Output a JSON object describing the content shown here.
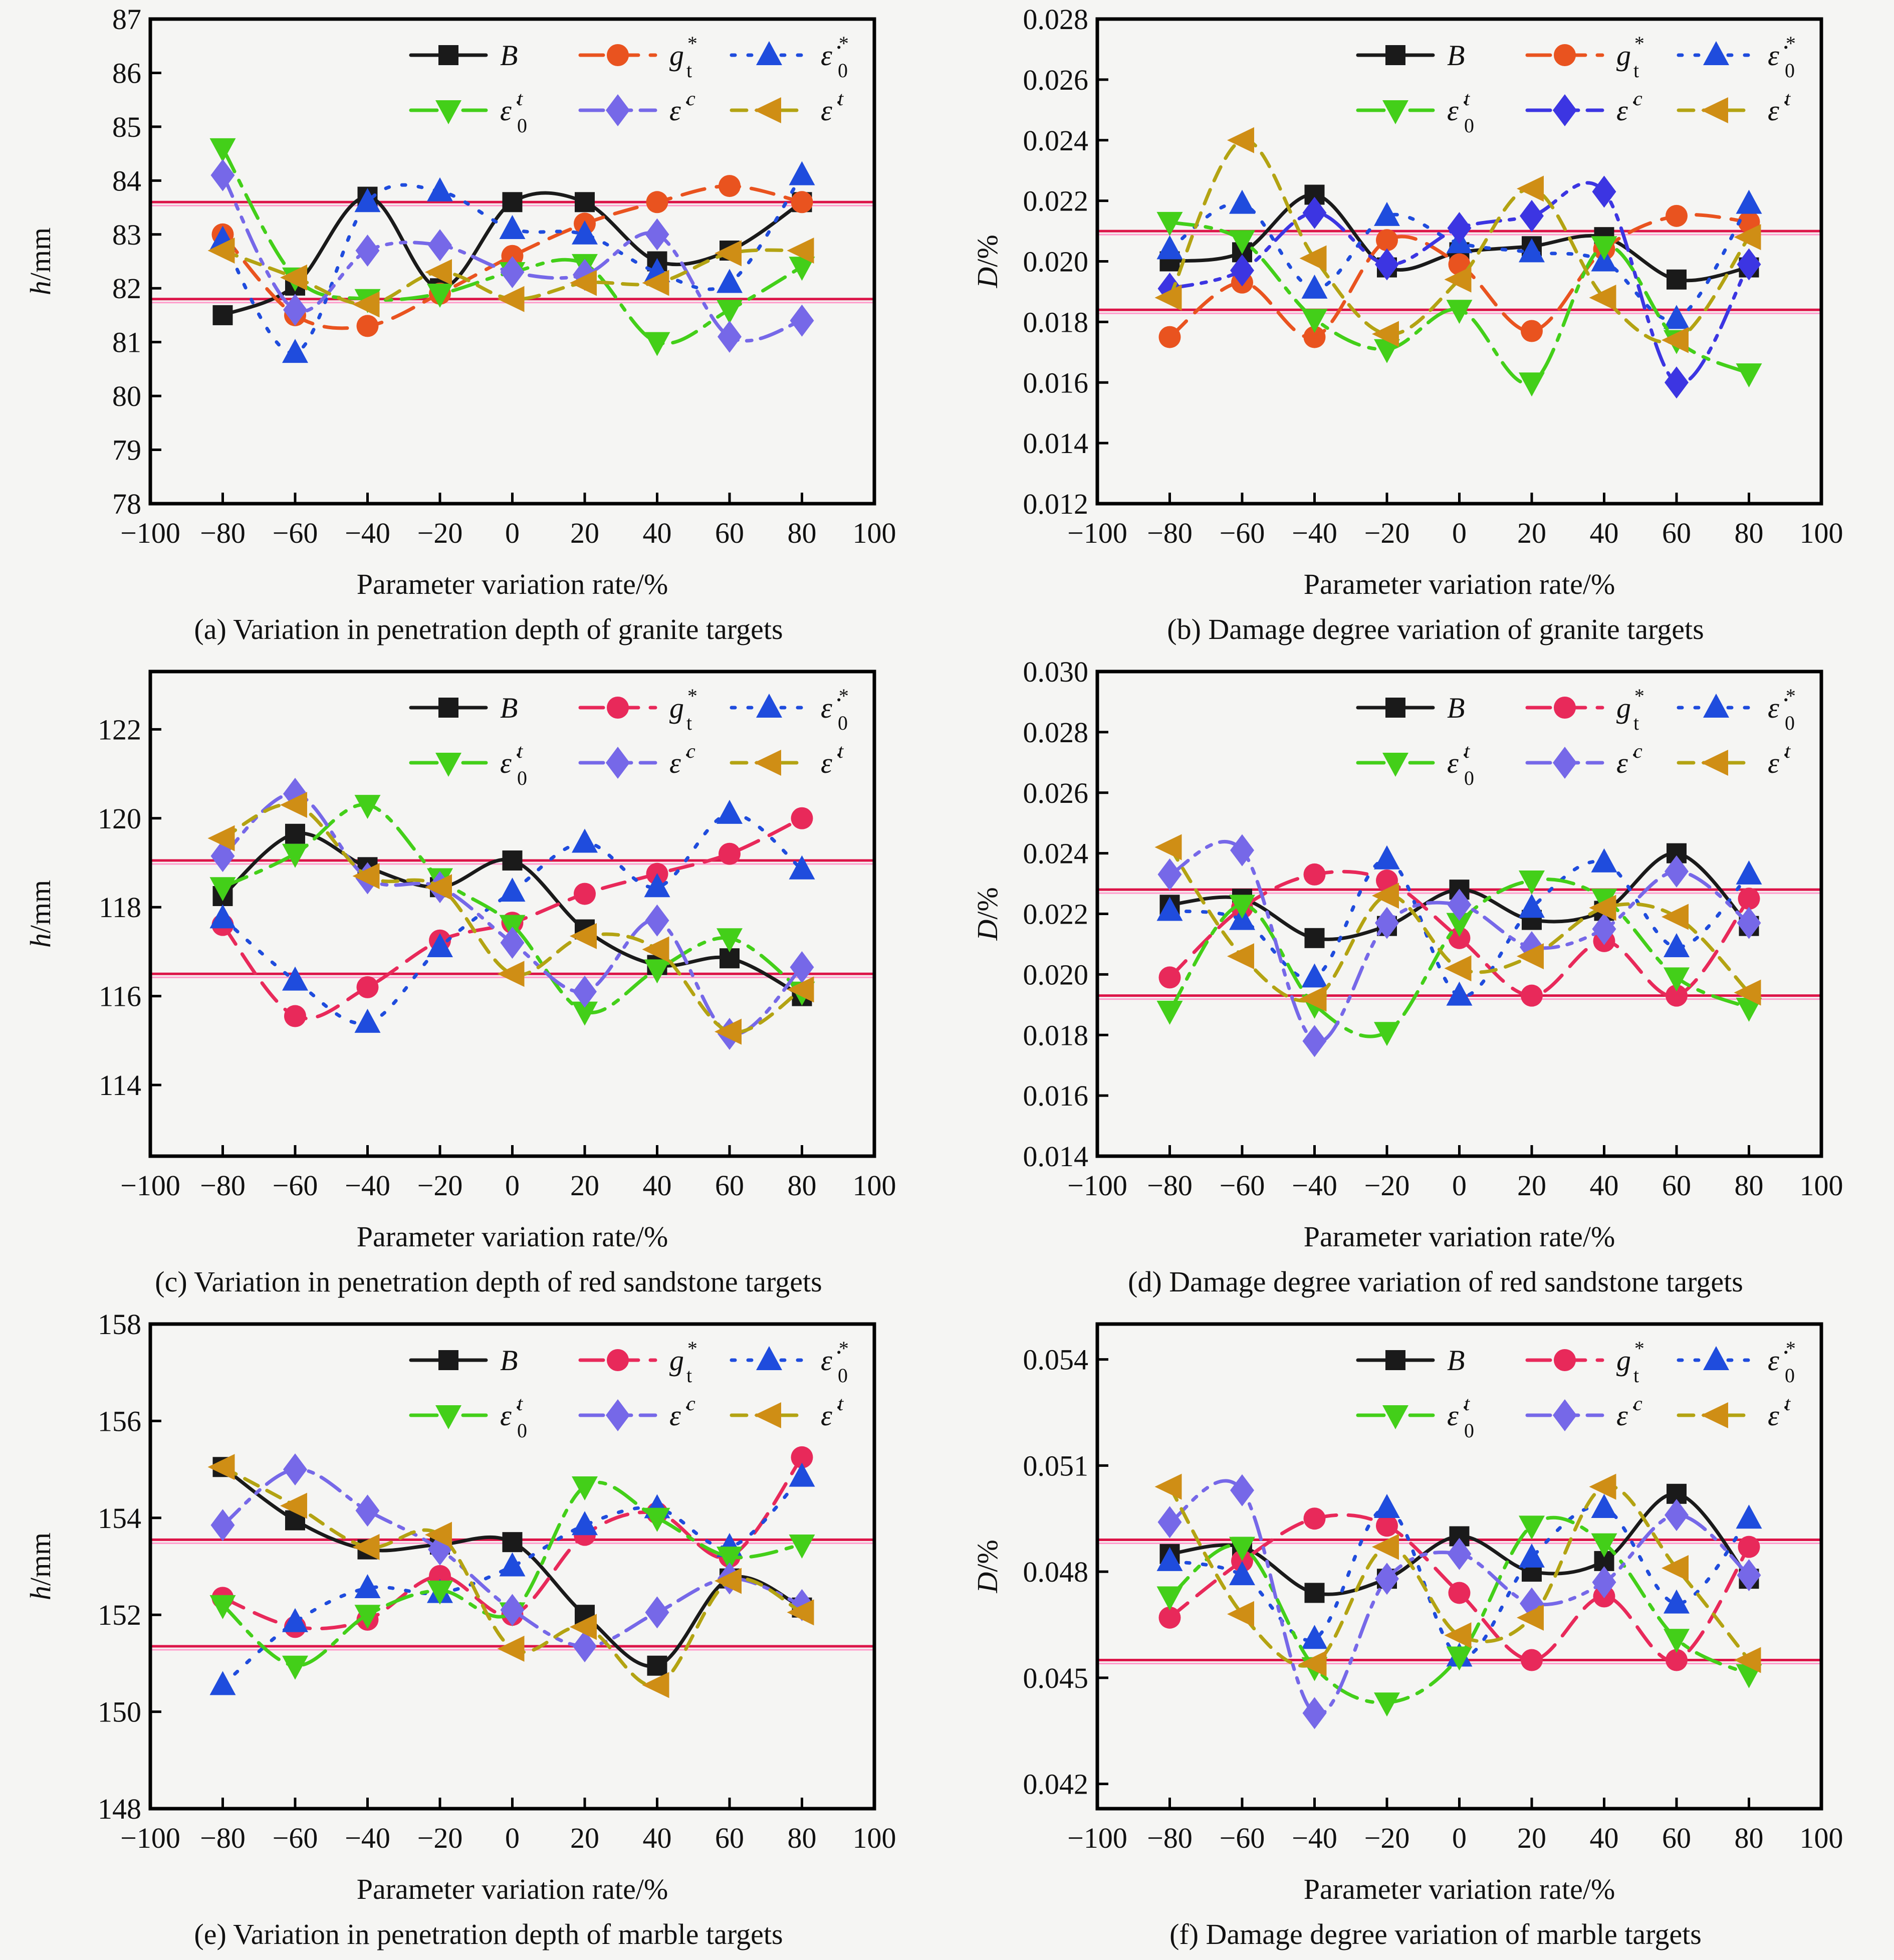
{
  "page": {
    "background": "#f5f5f3"
  },
  "common": {
    "xlabel": "Parameter variation rate/%",
    "xlim": [
      -100,
      100
    ],
    "x_ticks": [
      -100,
      -80,
      -60,
      -40,
      -20,
      0,
      20,
      40,
      60,
      80,
      100
    ],
    "x_values": [
      -80,
      -60,
      -40,
      -20,
      0,
      20,
      40,
      60,
      80
    ],
    "legend_rows": [
      [
        "B",
        "g_t_star",
        "eps0_star"
      ],
      [
        "eps0_t",
        "eps_c",
        "eps_t"
      ]
    ],
    "ref_line_colors": {
      "main": "#dc1448",
      "light": "#ff9ccb"
    },
    "series_defs": [
      {
        "key": "B",
        "label": {
          "main": "B",
          "sub": "",
          "sup": ""
        },
        "marker": "square",
        "dash": "solid",
        "color": "#1a1a1a"
      },
      {
        "key": "g_t_star",
        "label": {
          "main": "g",
          "sub": "t",
          "sup": "*"
        },
        "marker": "circle",
        "dash": "dashed",
        "color": "#e9531f"
      },
      {
        "key": "eps0_star",
        "label": {
          "main": "ε̇",
          "sub": "0",
          "sup": "*"
        },
        "marker": "triangle-up",
        "dash": "dotted",
        "color": "#1f4cdd"
      },
      {
        "key": "eps0_t",
        "label": {
          "main": "ε̇",
          "sub": "0",
          "sup": "t"
        },
        "marker": "triangle-down",
        "dash": "dashdot",
        "color": "#43cf19"
      },
      {
        "key": "eps_c",
        "label": {
          "main": "ε̇",
          "sub": "",
          "sup": "c"
        },
        "marker": "diamond",
        "dash": "dashdotdot",
        "color": "#7668e8"
      },
      {
        "key": "eps_t",
        "label": {
          "main": "ε̇",
          "sub": "",
          "sup": "t"
        },
        "marker": "triangle-left",
        "dash": "dash",
        "color": "#cf8e15",
        "line_color": "#b3a312"
      }
    ]
  },
  "chart_data": [
    {
      "id": "a",
      "type": "line",
      "caption": "(a) Variation in penetration depth of granite targets",
      "ylabel_italic": "h",
      "ylabel_unit": "/mm",
      "ylim": [
        78,
        87
      ],
      "yticks": [
        78,
        79,
        80,
        81,
        82,
        83,
        84,
        85,
        86,
        87
      ],
      "ytick_decimals": 0,
      "ref_lines": [
        83.6,
        81.8
      ],
      "series": {
        "B": [
          81.5,
          82.05,
          83.7,
          82.0,
          83.6,
          83.6,
          82.5,
          82.7,
          83.6
        ],
        "g_t_star": [
          83.0,
          81.5,
          81.3,
          81.9,
          82.6,
          83.2,
          83.6,
          83.9,
          83.6
        ],
        "eps0_star": [
          82.9,
          80.8,
          83.6,
          83.8,
          83.1,
          83.0,
          82.3,
          82.1,
          84.1
        ],
        "eps0_t": [
          84.6,
          82.2,
          81.8,
          81.9,
          82.3,
          82.45,
          81.0,
          81.6,
          82.4
        ],
        "eps_c": [
          84.1,
          81.6,
          82.7,
          82.8,
          82.3,
          82.25,
          83.0,
          81.1,
          81.4
        ],
        "eps_t": [
          82.7,
          82.2,
          81.7,
          82.3,
          81.8,
          82.1,
          82.1,
          82.65,
          82.7
        ]
      },
      "color_overrides": {}
    },
    {
      "id": "b",
      "type": "line",
      "caption": "(b) Damage degree variation of granite targets",
      "ylabel_italic": "D",
      "ylabel_unit": "/%",
      "ylim": [
        0.012,
        0.028
      ],
      "yticks": [
        0.012,
        0.014,
        0.016,
        0.018,
        0.02,
        0.022,
        0.024,
        0.026,
        0.028
      ],
      "ytick_decimals": 3,
      "ref_lines": [
        0.021,
        0.0184
      ],
      "series": {
        "B": [
          0.02,
          0.0203,
          0.0222,
          0.0198,
          0.0203,
          0.0205,
          0.0208,
          0.0194,
          0.0198
        ],
        "g_t_star": [
          0.0175,
          0.0193,
          0.0175,
          0.0207,
          0.0199,
          0.0177,
          0.0204,
          0.0215,
          0.0213
        ],
        "eps0_star": [
          0.0204,
          0.0219,
          0.0191,
          0.0215,
          0.0206,
          0.0203,
          0.02,
          0.0181,
          0.0219
        ],
        "eps0_t": [
          0.0213,
          0.0207,
          0.0181,
          0.0171,
          0.0184,
          0.016,
          0.0205,
          0.0174,
          0.0163
        ],
        "eps_c": [
          0.0191,
          0.0197,
          0.0216,
          0.0199,
          0.0211,
          0.0215,
          0.0223,
          0.016,
          0.0199
        ],
        "eps_t": [
          0.0188,
          0.024,
          0.0201,
          0.0176,
          0.0194,
          0.0224,
          0.0188,
          0.0174,
          0.0208
        ]
      },
      "color_overrides": {
        "eps_c": "#3c35e2"
      }
    },
    {
      "id": "c",
      "type": "line",
      "caption": "(c) Variation in penetration depth of red sandstone targets",
      "ylabel_italic": "h",
      "ylabel_unit": "/mm",
      "ylim": [
        112.4,
        123.3
      ],
      "yticks": [
        114,
        116,
        118,
        120,
        122
      ],
      "ytick_decimals": 0,
      "ref_lines": [
        119.05,
        116.5
      ],
      "series": {
        "B": [
          118.25,
          119.65,
          118.9,
          118.45,
          119.05,
          117.5,
          116.7,
          116.85,
          116.0
        ],
        "g_t_star": [
          117.6,
          115.55,
          116.2,
          117.25,
          117.65,
          118.3,
          118.75,
          119.2,
          120.0
        ],
        "eps0_star": [
          117.75,
          116.35,
          115.4,
          117.1,
          118.35,
          119.45,
          118.45,
          120.1,
          118.85
        ],
        "eps0_t": [
          118.45,
          119.2,
          120.3,
          118.65,
          117.6,
          115.65,
          116.6,
          117.3,
          116.1
        ],
        "eps_c": [
          119.15,
          120.55,
          118.65,
          118.45,
          117.2,
          116.1,
          117.7,
          115.15,
          116.65
        ],
        "eps_t": [
          119.55,
          120.3,
          118.7,
          118.45,
          116.5,
          117.35,
          117.05,
          115.2,
          116.15
        ]
      },
      "color_overrides": {
        "g_t_star": "#e8295a"
      }
    },
    {
      "id": "d",
      "type": "line",
      "caption": "(d) Damage degree variation of red sandstone targets",
      "ylabel_italic": "D",
      "ylabel_unit": "/%",
      "ylim": [
        0.014,
        0.03
      ],
      "yticks": [
        0.014,
        0.016,
        0.018,
        0.02,
        0.022,
        0.024,
        0.026,
        0.028,
        0.03
      ],
      "ytick_decimals": 3,
      "ref_lines": [
        0.0228,
        0.0193
      ],
      "series": {
        "B": [
          0.0223,
          0.0225,
          0.0212,
          0.0216,
          0.0228,
          0.0218,
          0.0221,
          0.024,
          0.0216
        ],
        "g_t_star": [
          0.0199,
          0.0222,
          0.0233,
          0.0231,
          0.0212,
          0.0193,
          0.0211,
          0.0193,
          0.0225
        ],
        "eps0_star": [
          0.0221,
          0.0218,
          0.0199,
          0.0238,
          0.0193,
          0.0222,
          0.0237,
          0.0209,
          0.0233
        ],
        "eps0_t": [
          0.0188,
          0.0223,
          0.019,
          0.0181,
          0.0217,
          0.0231,
          0.0225,
          0.0199,
          0.0189
        ],
        "eps_c": [
          0.0233,
          0.0241,
          0.0178,
          0.0217,
          0.0223,
          0.0209,
          0.0215,
          0.0234,
          0.0217
        ],
        "eps_t": [
          0.0242,
          0.0206,
          0.0192,
          0.0226,
          0.0202,
          0.0206,
          0.0222,
          0.0219,
          0.0194
        ]
      },
      "color_overrides": {
        "g_t_star": "#e8295a"
      }
    },
    {
      "id": "e",
      "type": "line",
      "caption": "(e) Variation in penetration depth of marble targets",
      "ylabel_italic": "h",
      "ylabel_unit": "/mm",
      "ylim": [
        148,
        158
      ],
      "yticks": [
        148,
        150,
        152,
        154,
        156,
        158
      ],
      "ytick_decimals": 0,
      "ref_lines": [
        153.55,
        151.35
      ],
      "series": {
        "B": [
          155.05,
          153.95,
          153.35,
          153.45,
          153.5,
          152.0,
          150.95,
          152.75,
          152.15
        ],
        "g_t_star": [
          152.35,
          151.75,
          151.9,
          152.8,
          152.0,
          153.65,
          154.1,
          153.2,
          155.25
        ],
        "eps0_star": [
          150.55,
          151.85,
          152.55,
          152.45,
          153.0,
          153.85,
          154.2,
          153.4,
          154.85
        ],
        "eps0_t": [
          152.2,
          150.95,
          152.0,
          152.5,
          152.05,
          154.65,
          154.0,
          153.2,
          153.45
        ],
        "eps_c": [
          153.85,
          155.0,
          154.15,
          153.35,
          152.1,
          151.35,
          152.05,
          152.75,
          152.2
        ],
        "eps_t": [
          155.05,
          154.25,
          153.4,
          153.65,
          151.3,
          151.75,
          150.55,
          152.7,
          152.05
        ]
      },
      "color_overrides": {
        "g_t_star": "#e8295a"
      }
    },
    {
      "id": "f",
      "type": "line",
      "caption": "(f) Damage degree variation of marble targets",
      "ylabel_italic": "D",
      "ylabel_unit": "/%",
      "ylim": [
        0.0413,
        0.055
      ],
      "yticks": [
        0.042,
        0.045,
        0.048,
        0.051,
        0.054
      ],
      "ytick_decimals": 3,
      "ref_lines": [
        0.0489,
        0.0455
      ],
      "series": {
        "B": [
          0.0485,
          0.0487,
          0.0474,
          0.0478,
          0.049,
          0.048,
          0.0483,
          0.0502,
          0.0478
        ],
        "g_t_star": [
          0.0467,
          0.0483,
          0.0495,
          0.0493,
          0.0474,
          0.0455,
          0.0473,
          0.0455,
          0.0487
        ],
        "eps0_star": [
          0.0483,
          0.0479,
          0.0461,
          0.0498,
          0.0456,
          0.0484,
          0.0498,
          0.0471,
          0.0495
        ],
        "eps0_t": [
          0.0473,
          0.0487,
          0.0453,
          0.0443,
          0.0456,
          0.0493,
          0.0488,
          0.0461,
          0.0451
        ],
        "eps_c": [
          0.0494,
          0.0503,
          0.044,
          0.0478,
          0.0485,
          0.0471,
          0.0477,
          0.0496,
          0.0479
        ],
        "eps_t": [
          0.0504,
          0.0468,
          0.0454,
          0.0487,
          0.0462,
          0.0467,
          0.0504,
          0.0481,
          0.0455
        ]
      },
      "color_overrides": {
        "g_t_star": "#e8295a"
      }
    }
  ]
}
